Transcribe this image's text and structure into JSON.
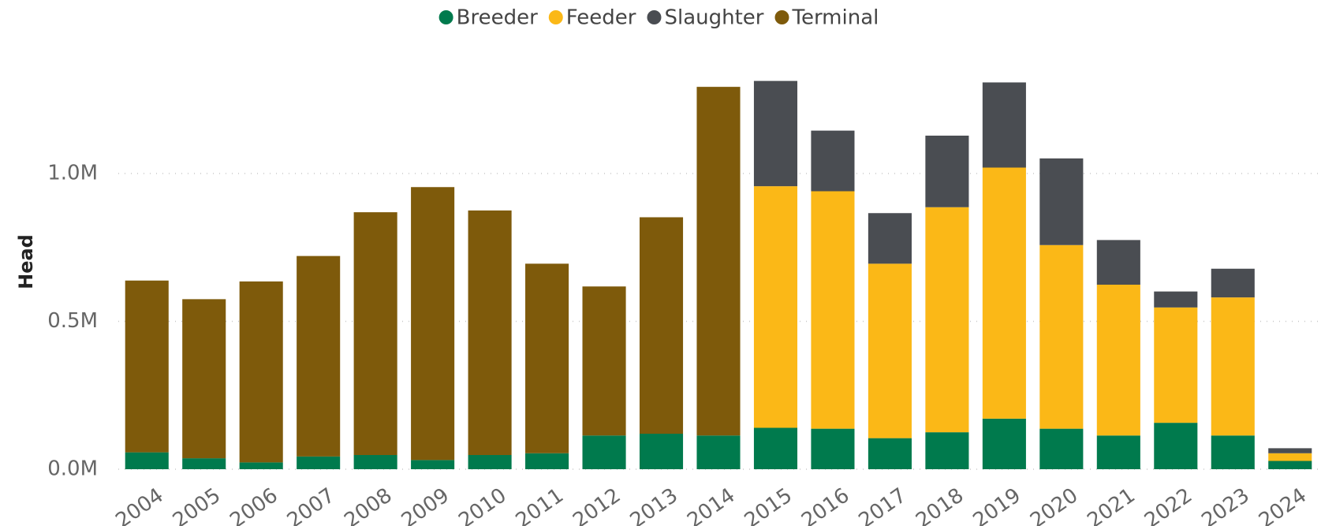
{
  "chart_data": {
    "type": "stacked_bar",
    "y_label": "Head",
    "categories": [
      "2004",
      "2005",
      "2006",
      "2007",
      "2008",
      "2009",
      "2010",
      "2011",
      "2012",
      "2013",
      "2014",
      "2015",
      "2016",
      "2017",
      "2018",
      "2019",
      "2020",
      "2021",
      "2022",
      "2023",
      "2024"
    ],
    "series": [
      {
        "name": "Breeder",
        "color": "#007a4d",
        "values": [
          57000,
          37000,
          23000,
          43000,
          48000,
          31000,
          48000,
          54000,
          114000,
          120000,
          114000,
          140000,
          137000,
          105000,
          125000,
          171000,
          137000,
          114000,
          157000,
          114000,
          28000
        ]
      },
      {
        "name": "Feeder",
        "color": "#fbb817",
        "values": [
          null,
          null,
          null,
          null,
          null,
          null,
          null,
          null,
          null,
          null,
          null,
          817000,
          803000,
          590000,
          761000,
          849000,
          621000,
          510000,
          390000,
          467000,
          26000
        ]
      },
      {
        "name": "Slaughter",
        "color": "#4a4d52",
        "values": [
          null,
          null,
          null,
          null,
          null,
          null,
          null,
          null,
          null,
          null,
          null,
          356000,
          205000,
          171000,
          242000,
          288000,
          293000,
          151000,
          54000,
          97000,
          17000
        ]
      },
      {
        "name": "Terminal",
        "color": "#7e5a0b",
        "values": [
          581000,
          538000,
          612000,
          678000,
          821000,
          923000,
          827000,
          641000,
          504000,
          732000,
          1179000,
          null,
          null,
          null,
          null,
          null,
          null,
          null,
          null,
          null,
          null
        ]
      }
    ],
    "ylim": [
      0,
      1400000
    ],
    "yticks": [
      {
        "value": 0,
        "label": "0.0M"
      },
      {
        "value": 500000,
        "label": "0.5M"
      },
      {
        "value": 1000000,
        "label": "1.0M"
      }
    ],
    "grid": true,
    "legend": "top"
  }
}
